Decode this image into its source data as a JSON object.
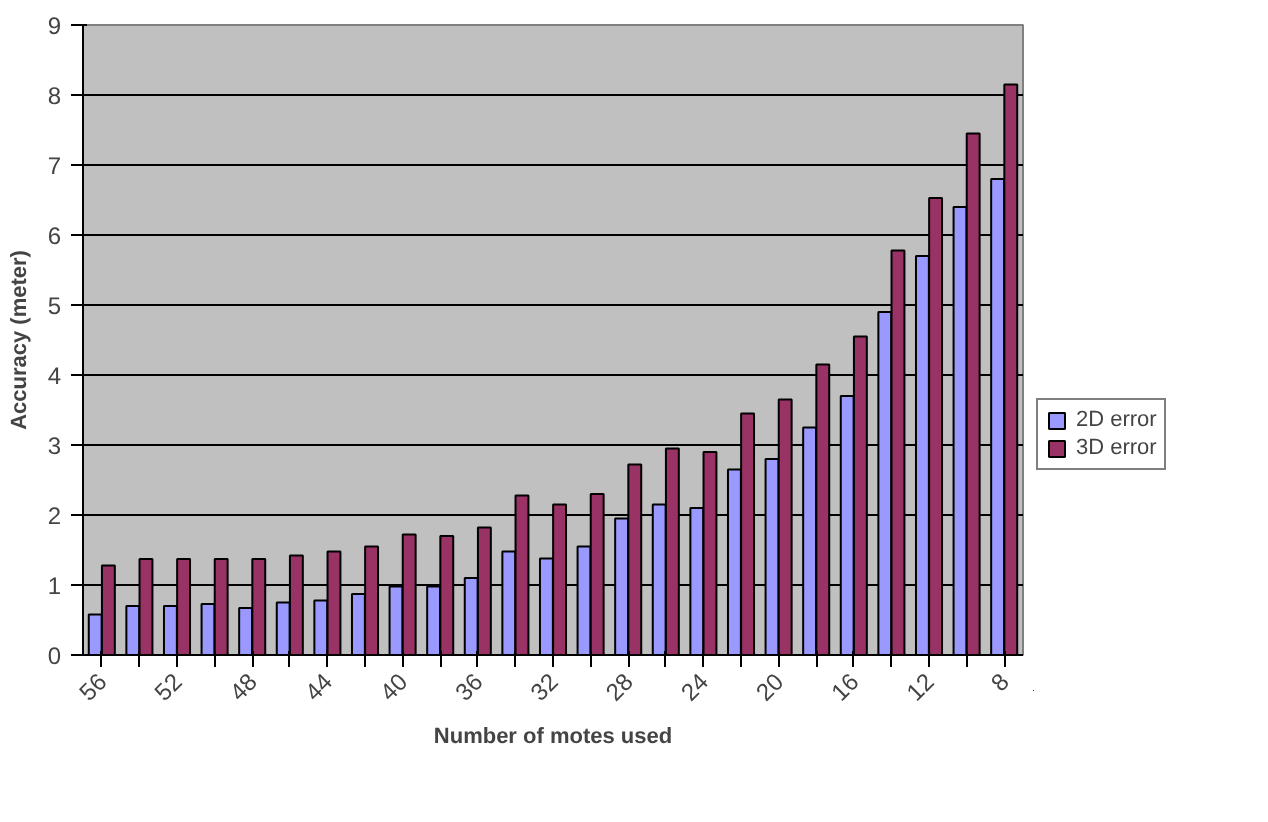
{
  "chart_data": {
    "type": "bar",
    "xlabel": "Number of motes used",
    "ylabel": "Accuracy (meter)",
    "categories": [
      "56",
      null,
      "52",
      null,
      "48",
      null,
      "44",
      null,
      "40",
      null,
      "36",
      null,
      "32",
      null,
      "28",
      null,
      "24",
      null,
      "20",
      null,
      "16",
      null,
      "12",
      null,
      "8"
    ],
    "series": [
      {
        "name": "2D error",
        "color": "#9999ff",
        "values": [
          0.58,
          0.7,
          0.7,
          0.73,
          0.67,
          0.75,
          0.78,
          0.87,
          0.98,
          0.98,
          1.1,
          1.48,
          1.38,
          1.55,
          1.95,
          2.15,
          2.1,
          2.65,
          2.8,
          3.25,
          3.7,
          4.9,
          5.7,
          6.4,
          6.8
        ]
      },
      {
        "name": "3D error",
        "color": "#993366",
        "values": [
          1.28,
          1.37,
          1.37,
          1.37,
          1.37,
          1.42,
          1.48,
          1.55,
          1.72,
          1.7,
          1.82,
          2.28,
          2.15,
          2.3,
          2.72,
          2.95,
          2.9,
          3.45,
          3.65,
          4.15,
          4.55,
          5.78,
          6.53,
          7.45,
          8.15
        ]
      }
    ],
    "ylim": [
      0,
      9
    ],
    "yticks": [
      0,
      1,
      2,
      3,
      4,
      5,
      6,
      7,
      8,
      9
    ],
    "grid": "y",
    "legend": "right"
  }
}
